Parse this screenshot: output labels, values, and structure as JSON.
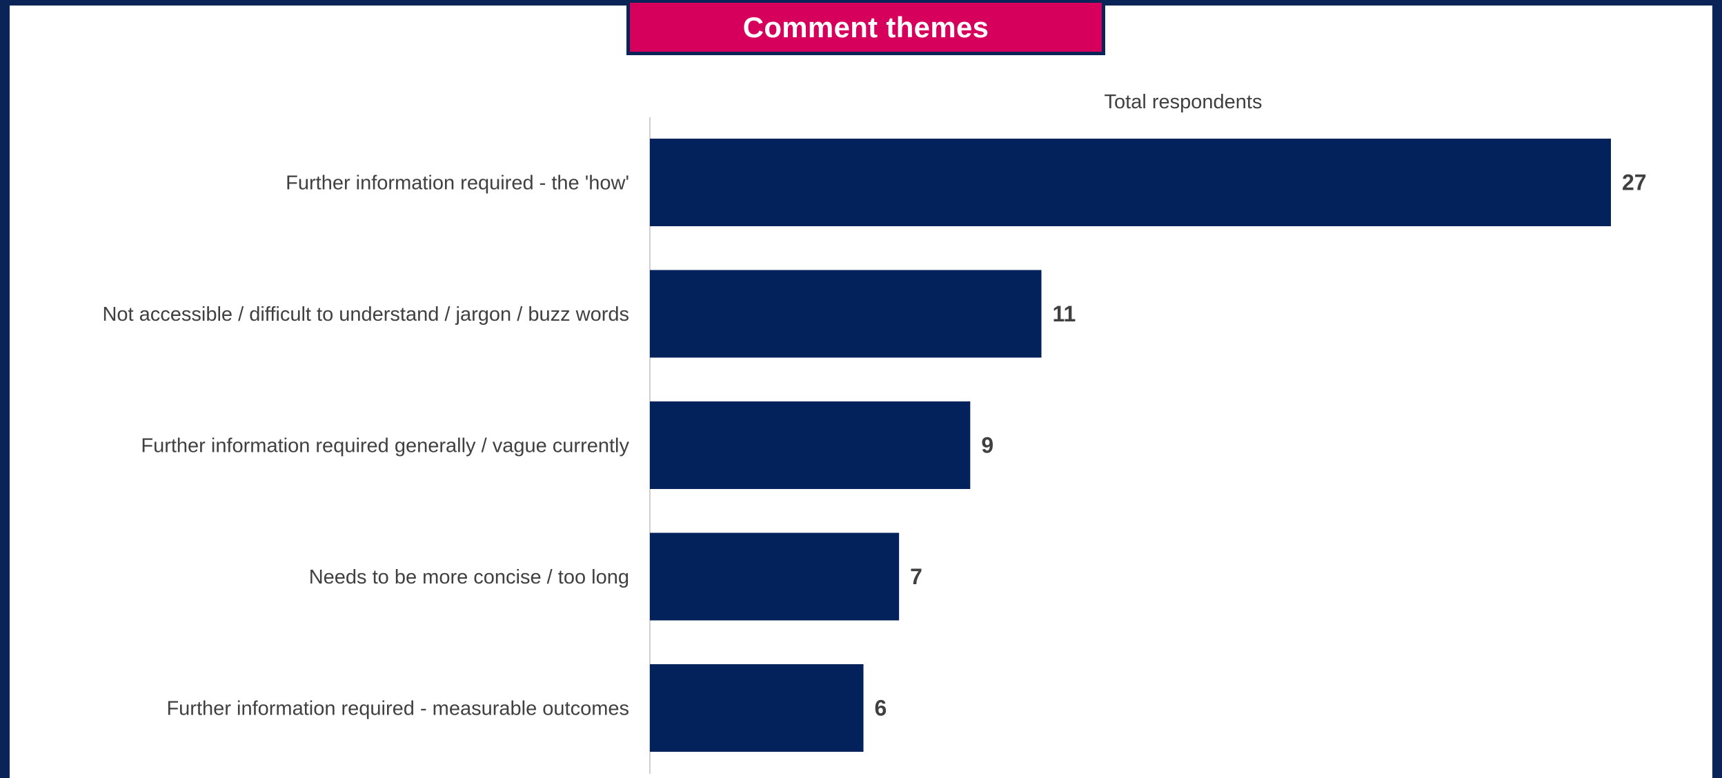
{
  "title": "Comment themes",
  "colors": {
    "frame": "#0a2457",
    "title_bg": "#d6005c",
    "bar": "#03215b",
    "text": "#404040",
    "axis": "#d0d0d0"
  },
  "chart_data": {
    "type": "bar",
    "orientation": "horizontal",
    "title": "Comment themes",
    "xlabel": "",
    "ylabel": "",
    "categories": [
      "Further information required - the 'how'",
      "Not accessible / difficult to understand / jargon / buzz words",
      "Further information required generally / vague currently",
      "Needs to be more concise / too long",
      "Further information required - measurable outcomes"
    ],
    "series": [
      {
        "name": "Total respondents",
        "values": [
          27,
          11,
          9,
          7,
          6
        ]
      }
    ],
    "xlim": [
      0,
      27
    ],
    "grid": false,
    "data_labels": true
  }
}
